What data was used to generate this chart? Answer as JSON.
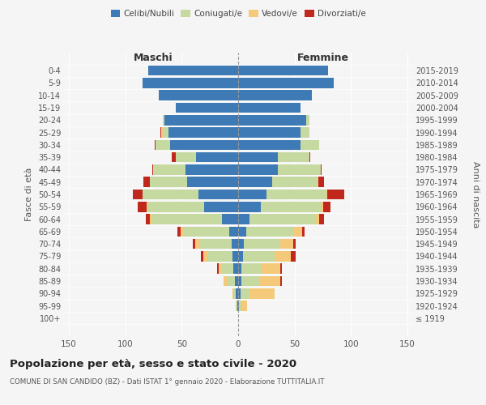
{
  "age_groups": [
    "100+",
    "95-99",
    "90-94",
    "85-89",
    "80-84",
    "75-79",
    "70-74",
    "65-69",
    "60-64",
    "55-59",
    "50-54",
    "45-49",
    "40-44",
    "35-39",
    "30-34",
    "25-29",
    "20-24",
    "15-19",
    "10-14",
    "5-9",
    "0-4"
  ],
  "birth_years": [
    "≤ 1919",
    "1920-1924",
    "1925-1929",
    "1930-1934",
    "1935-1939",
    "1940-1944",
    "1945-1949",
    "1950-1954",
    "1955-1959",
    "1960-1964",
    "1965-1969",
    "1970-1974",
    "1975-1979",
    "1980-1984",
    "1985-1989",
    "1990-1994",
    "1995-1999",
    "2000-2004",
    "2005-2009",
    "2010-2014",
    "2015-2019"
  ],
  "maschi_celibi": [
    0,
    1,
    2,
    3,
    4,
    5,
    6,
    8,
    14,
    30,
    35,
    45,
    47,
    37,
    60,
    62,
    65,
    55,
    70,
    85,
    80
  ],
  "maschi_coniugati": [
    0,
    1,
    2,
    7,
    10,
    22,
    28,
    40,
    62,
    50,
    50,
    33,
    28,
    18,
    13,
    5,
    2,
    0,
    0,
    0,
    0
  ],
  "maschi_vedovi": [
    0,
    0,
    1,
    3,
    3,
    4,
    4,
    3,
    2,
    1,
    0,
    0,
    0,
    0,
    0,
    1,
    0,
    0,
    0,
    0,
    0
  ],
  "maschi_divorziati": [
    0,
    0,
    0,
    0,
    2,
    2,
    2,
    3,
    4,
    8,
    8,
    6,
    1,
    4,
    1,
    1,
    0,
    0,
    0,
    0,
    0
  ],
  "femmine_nubili": [
    0,
    1,
    2,
    3,
    3,
    4,
    5,
    7,
    10,
    20,
    25,
    30,
    35,
    35,
    55,
    55,
    60,
    55,
    65,
    85,
    80
  ],
  "femmine_coniugate": [
    0,
    2,
    8,
    16,
    18,
    28,
    32,
    42,
    58,
    53,
    53,
    40,
    38,
    28,
    17,
    8,
    3,
    0,
    0,
    0,
    0
  ],
  "femmine_vedove": [
    0,
    5,
    22,
    18,
    16,
    15,
    12,
    8,
    4,
    2,
    1,
    1,
    0,
    0,
    0,
    0,
    0,
    0,
    0,
    0,
    0
  ],
  "femmine_divorziate": [
    0,
    0,
    0,
    2,
    2,
    4,
    2,
    2,
    4,
    7,
    15,
    5,
    1,
    1,
    0,
    0,
    0,
    0,
    0,
    0,
    0
  ],
  "colors": {
    "celibi": "#3e7ab5",
    "coniugati": "#c5d9a0",
    "vedovi": "#f5c97a",
    "divorziati": "#c0281e"
  },
  "xlim": 155,
  "title": "Popolazione per età, sesso e stato civile - 2020",
  "subtitle": "COMUNE DI SAN CANDIDO (BZ) - Dati ISTAT 1° gennaio 2020 - Elaborazione TUTTITALIA.IT",
  "ylabel_left": "Fasce di età",
  "ylabel_right": "Anni di nascita",
  "xlabel_left": "Maschi",
  "xlabel_right": "Femmine",
  "bg_color": "#f5f5f5"
}
